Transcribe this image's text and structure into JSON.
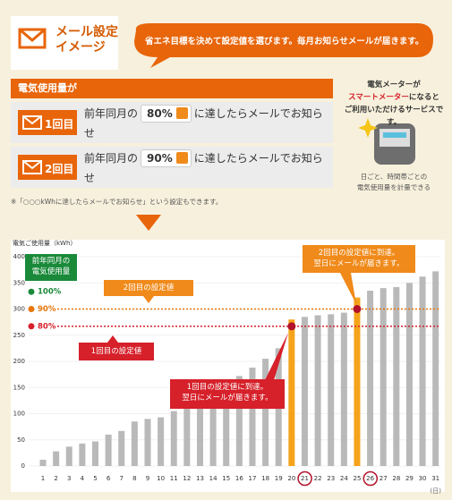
{
  "header": {
    "title_lines": [
      "メール設定",
      "イメージ"
    ],
    "bubble": "省エネ目標を決めて設定値を選びます。毎月お知らせメールが届きます。"
  },
  "settings": {
    "title": "電気使用量が",
    "rows": [
      {
        "badge": "1回目",
        "before": "前年同月の",
        "percent": "80%",
        "after": "に達したらメールでお知らせ"
      },
      {
        "badge": "2回目",
        "before": "前年同月の",
        "percent": "90%",
        "after": "に達したらメールでお知らせ"
      }
    ],
    "note": "※「○○○kWhに達したらメールでお知らせ」という設定もできます。"
  },
  "meter": {
    "line1": "電気メーターが",
    "highlight": "スマートメーター",
    "line2_rest": "になると",
    "line3": "ご利用いただけるサービスです。",
    "caption": [
      "日ごと、時間帯ごとの",
      "電気使用量を計量できる"
    ]
  },
  "chart_data": {
    "type": "bar",
    "y_label": "電気ご使用量（kWh）",
    "x_unit": "(日)",
    "categories": [
      "1",
      "2",
      "3",
      "4",
      "5",
      "6",
      "7",
      "8",
      "9",
      "10",
      "11",
      "12",
      "13",
      "14",
      "15",
      "16",
      "17",
      "18",
      "19",
      "20",
      "21",
      "22",
      "23",
      "24",
      "25",
      "26",
      "27",
      "28",
      "29",
      "30",
      "31"
    ],
    "values": [
      12,
      28,
      37,
      43,
      47,
      60,
      67,
      85,
      90,
      93,
      105,
      110,
      125,
      140,
      150,
      172,
      188,
      205,
      225,
      280,
      285,
      288,
      290,
      293,
      322,
      335,
      340,
      342,
      350,
      362,
      372
    ],
    "colors": [
      "#b9b9b9",
      "#b9b9b9",
      "#b9b9b9",
      "#b9b9b9",
      "#b9b9b9",
      "#b9b9b9",
      "#b9b9b9",
      "#b9b9b9",
      "#b9b9b9",
      "#b9b9b9",
      "#b9b9b9",
      "#b9b9b9",
      "#b9b9b9",
      "#b9b9b9",
      "#b9b9b9",
      "#b9b9b9",
      "#b9b9b9",
      "#b9b9b9",
      "#b9b9b9",
      "#f5a31a",
      "#b9b9b9",
      "#b9b9b9",
      "#b9b9b9",
      "#b9b9b9",
      "#f5a31a",
      "#b9b9b9",
      "#b9b9b9",
      "#b9b9b9",
      "#b9b9b9",
      "#b9b9b9",
      "#b9b9b9"
    ],
    "ylim": [
      0,
      400
    ],
    "yticks": [
      0,
      50,
      100,
      150,
      200,
      250,
      300,
      350,
      400
    ],
    "grid": true,
    "reference_lines": [
      {
        "value": 333,
        "label": "100%",
        "color": "#1a8a3a",
        "dotted": false,
        "mark_crossing": false
      },
      {
        "value": 300,
        "label": "90%",
        "color": "#e8760a",
        "dotted": true,
        "mark_crossing": true
      },
      {
        "value": 267,
        "label": "80%",
        "color": "#d6202a",
        "dotted": true,
        "mark_crossing": true
      }
    ],
    "crossing_color": "#b3122a",
    "annotations": {
      "baseline": "前年同月の\n電気使用量",
      "second_setting": "2回目の設定値",
      "first_setting": "1回目の設定値",
      "first_reached": "1回目の設定値に到達。\n翌日にメールが届きます。",
      "second_reached": "2回目の設定値に到達。\n翌日にメールが届きます。"
    }
  }
}
